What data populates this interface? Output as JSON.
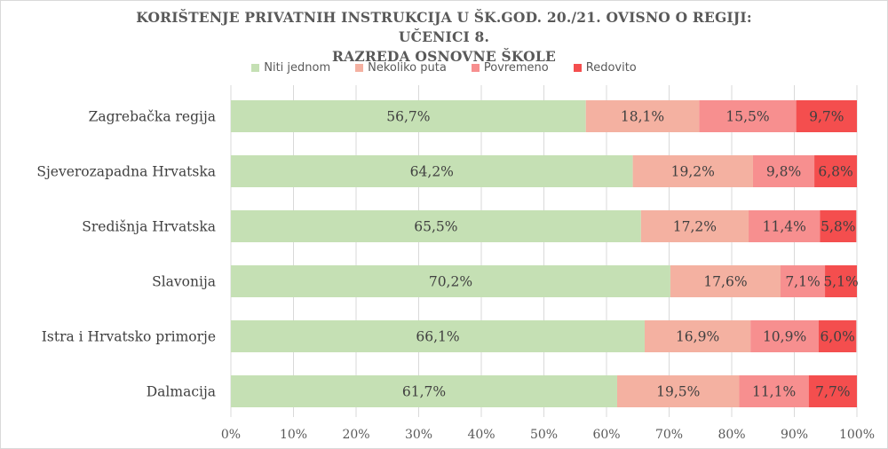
{
  "chart_data": {
    "type": "bar",
    "orientation": "horizontal",
    "stacked": "percent",
    "title": "KORIŠTENJE PRIVATNIH INSTRUKCIJA U ŠK.GOD. 20./21. OVISNO O REGIJI: UČENICI 8. RAZREDA OSNOVNE ŠKOLE",
    "title_lines": [
      "KORIŠTENJE PRIVATNIH INSTRUKCIJA U ŠK.GOD. 20./21. OVISNO O REGIJI: UČENICI 8.",
      "RAZREDA OSNOVNE ŠKOLE"
    ],
    "categories": [
      "Zagrebačka regija",
      "Sjeverozapadna Hrvatska",
      "Središnja Hrvatska",
      "Slavonija",
      "Istra i Hrvatsko primorje",
      "Dalmacija"
    ],
    "series": [
      {
        "name": "Niti jednom",
        "color": "#c5e0b4",
        "values": [
          56.7,
          64.2,
          65.5,
          70.2,
          66.1,
          61.7
        ],
        "labels": [
          "56,7%",
          "64,2%",
          "65,5%",
          "70,2%",
          "66,1%",
          "61,7%"
        ]
      },
      {
        "name": "Nekoliko puta",
        "color": "#f4b1a1",
        "values": [
          18.1,
          19.2,
          17.2,
          17.6,
          16.9,
          19.5
        ],
        "labels": [
          "18,1%",
          "19,2%",
          "17,2%",
          "17,6%",
          "16,9%",
          "19,5%"
        ]
      },
      {
        "name": "Povremeno",
        "color": "#f78f8f",
        "values": [
          15.5,
          9.8,
          11.4,
          7.1,
          10.9,
          11.1
        ],
        "labels": [
          "15,5%",
          "9,8%",
          "11,4%",
          "7,1%",
          "10,9%",
          "11,1%"
        ]
      },
      {
        "name": "Redovito",
        "color": "#f44e4e",
        "values": [
          9.7,
          6.8,
          5.8,
          5.1,
          6.0,
          7.7
        ],
        "labels": [
          "9,7%",
          "6,8%",
          "5,8%",
          "5,1%",
          "6,0%",
          "7,7%"
        ]
      }
    ],
    "xlim": [
      0,
      100
    ],
    "xticks": [
      "0%",
      "10%",
      "20%",
      "30%",
      "40%",
      "50%",
      "60%",
      "70%",
      "80%",
      "90%",
      "100%"
    ],
    "grid": true,
    "legend_position": "top"
  }
}
